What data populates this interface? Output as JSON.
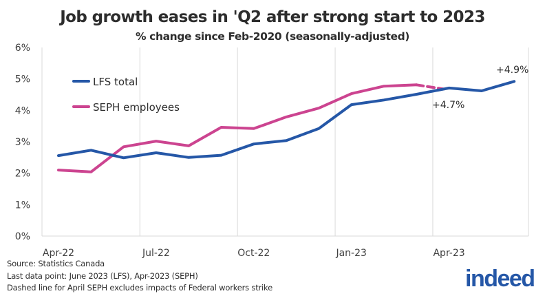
{
  "chart_data": {
    "type": "line",
    "title": "Job growth eases in 'Q2 after strong start to 2023",
    "subtitle": "% change since Feb-2020 (seasonally-adjusted)",
    "xlabel": "",
    "ylabel": "",
    "x": [
      "Apr-22",
      "May-22",
      "Jun-22",
      "Jul-22",
      "Aug-22",
      "Sep-22",
      "Oct-22",
      "Nov-22",
      "Dec-22",
      "Jan-23",
      "Feb-23",
      "Mar-23",
      "Apr-23",
      "May-23",
      "Jun-23"
    ],
    "x_tick_labels": [
      "Apr-22",
      "Jul-22",
      "Oct-22",
      "Jan-23",
      "Apr-23"
    ],
    "y_tick_labels": [
      "0%",
      "1%",
      "2%",
      "3%",
      "4%",
      "5%",
      "6%"
    ],
    "ylim": [
      0,
      6
    ],
    "grid": "vertical",
    "legend_position": "top-left",
    "series": [
      {
        "name": "LFS total",
        "color": "#2557a7",
        "values": [
          2.56,
          2.73,
          2.49,
          2.65,
          2.5,
          2.57,
          2.93,
          3.04,
          3.42,
          4.18,
          4.33,
          4.51,
          4.71,
          4.62,
          4.92
        ]
      },
      {
        "name": "SEPH employees",
        "color": "#cc4490",
        "values": [
          2.1,
          2.04,
          2.84,
          3.02,
          2.87,
          3.46,
          3.42,
          3.79,
          4.07,
          4.53,
          4.77,
          4.81,
          4.68,
          null,
          null
        ],
        "dashed_from_index": 11
      }
    ],
    "annotations": [
      {
        "text": "+4.9%",
        "series": "LFS total",
        "x": "Jun-23"
      },
      {
        "text": "+4.7%",
        "series": "SEPH employees",
        "x": "Apr-23"
      }
    ]
  },
  "footer": {
    "source": "Source: Statistics Canada",
    "last_point": "Last data point: June 2023 (LFS), Apr-2023 (SEPH)",
    "note": "Dashed line for April SEPH excludes impacts of Federal workers strike"
  },
  "logo": {
    "text": "indeed",
    "color": "#2557a7"
  }
}
